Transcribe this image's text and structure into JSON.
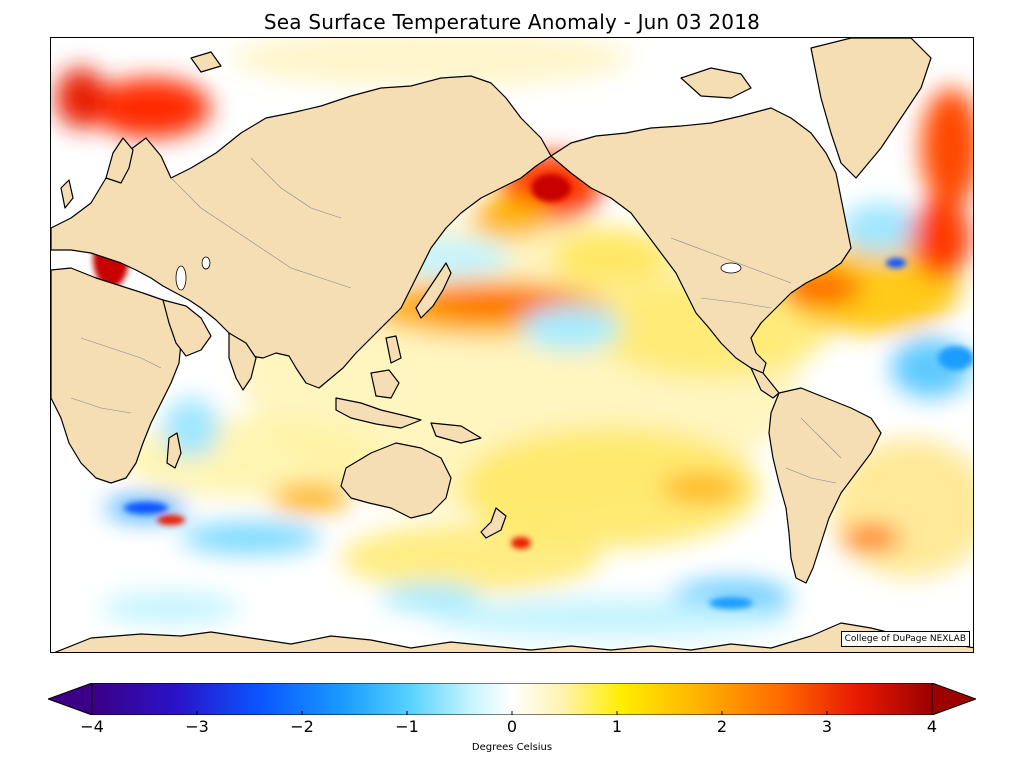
{
  "title": "Sea Surface Temperature Anomaly - Jun 03 2018",
  "credit": "College of DuPage NEXLAB",
  "colorbar": {
    "label": "Degrees Celsius",
    "min": -4,
    "max": 4,
    "extend": "both",
    "ticks": [
      "−4",
      "−3",
      "−2",
      "−1",
      "0",
      "1",
      "2",
      "3",
      "4"
    ],
    "colors": [
      "#3b0086",
      "#2a12c8",
      "#0a55ff",
      "#1a9cff",
      "#59d3ff",
      "#c5f4ff",
      "#ffffff",
      "#fff2b0",
      "#ffee00",
      "#ffb400",
      "#ff6a00",
      "#e81a00",
      "#9c0000"
    ]
  },
  "map": {
    "land_color": "#f5deb3",
    "coastline_color": "#000000",
    "border_color": "#888888"
  }
}
